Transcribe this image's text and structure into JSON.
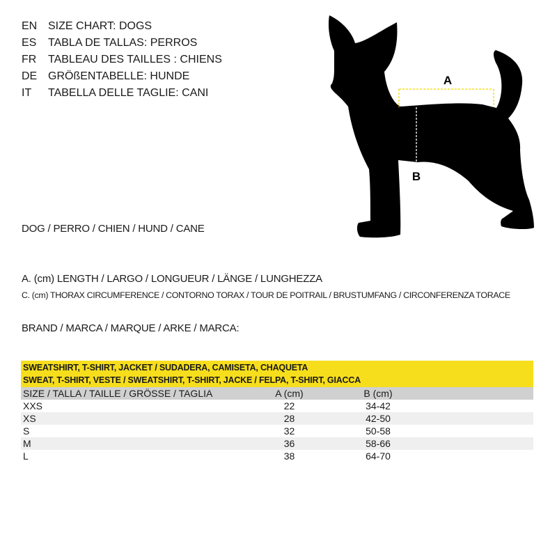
{
  "titles": [
    {
      "lang": "EN",
      "text": "SIZE CHART: DOGS"
    },
    {
      "lang": "ES",
      "text": "TABLA DE TALLAS: PERROS"
    },
    {
      "lang": "FR",
      "text": "TABLEAU DES TAILLES : CHIENS"
    },
    {
      "lang": "DE",
      "text": "GRÖßENTABELLE: HUNDE"
    },
    {
      "lang": "IT",
      "text": "TABELLA DELLE TAGLIE: CANI"
    }
  ],
  "dog_label": "DOG / PERRO / CHIEN / HUND / CANE",
  "legend_a": "A. (cm) LENGTH / LARGO / LONGUEUR / LÄNGE / LUNGHEZZA",
  "legend_c": "C. (cm) THORAX CIRCUMFERENCE / CONTORNO TORAX / TOUR DE POITRAIL / BRUSTUMFANG / CIRCONFERENZA TORACE",
  "brand": "BRAND / MARCA / MARQUE / ARKE / MARCA:",
  "diagram": {
    "label_a": "A",
    "label_b": "B",
    "accent": "#f7de1c"
  },
  "table": {
    "title1": "SWEATSHIRT, T-SHIRT, JACKET / SUDADERA, CAMISETA, CHAQUETA",
    "title2": "SWEAT, T-SHIRT, VESTE / SWEATSHIRT, T-SHIRT, JACKE / FELPA, T-SHIRT, GIACCA",
    "headers": [
      "SIZE / TALLA / TAILLE / GRÖSSE / TAGLIA",
      "A (cm)",
      "B (cm)"
    ],
    "rows": [
      [
        "XXS",
        "22",
        "34-42"
      ],
      [
        "XS",
        "28",
        "42-50"
      ],
      [
        "S",
        "32",
        "50-58"
      ],
      [
        "M",
        "36",
        "58-66"
      ],
      [
        "L",
        "38",
        "64-70"
      ]
    ]
  }
}
